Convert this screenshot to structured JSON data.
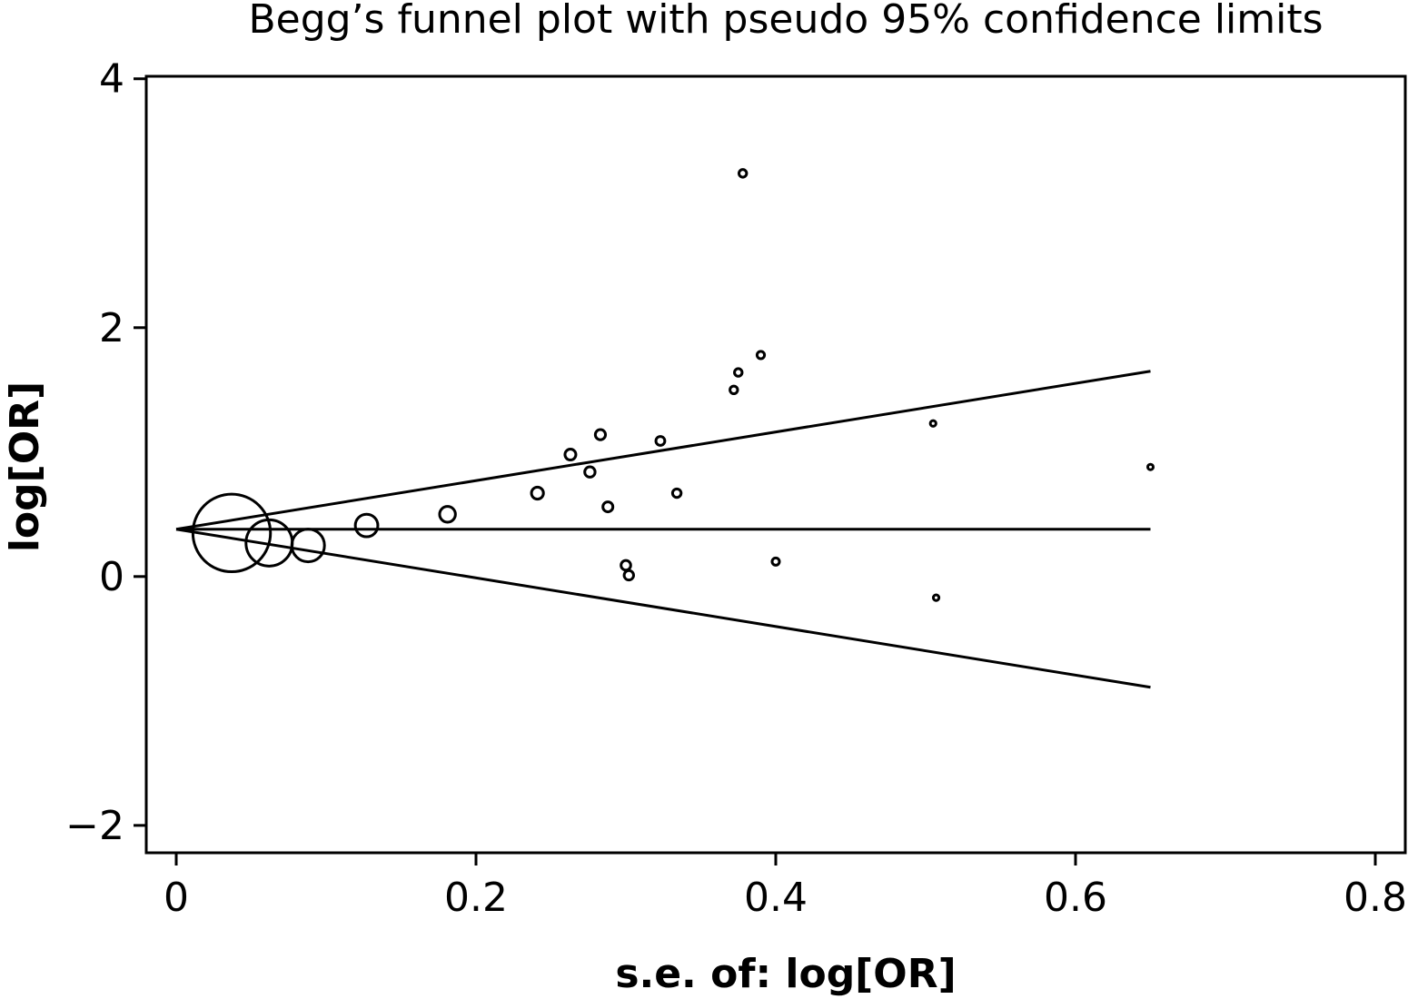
{
  "chart_data": {
    "type": "scatter",
    "title": "Begg’s funnel plot with pseudo 95% confidence limits",
    "xlabel": "s.e. of: log[OR]",
    "ylabel": "log[OR]",
    "xlim": [
      -0.02,
      0.82
    ],
    "ylim": [
      -2.22,
      4.02
    ],
    "xticks": [
      0,
      0.2,
      0.4,
      0.6,
      0.8
    ],
    "xtick_labels": [
      "0",
      "0.2",
      "0.4",
      "0.6",
      "0.8"
    ],
    "yticks": [
      -2,
      0,
      2,
      4
    ],
    "ytick_labels": [
      "−2",
      "0",
      "2",
      "4"
    ],
    "grid": false,
    "pooled_estimate": 0.38,
    "se_range": [
      0,
      0.65
    ],
    "confidence_limits": {
      "upper": [
        [
          0,
          0.38
        ],
        [
          0.65,
          1.65
        ]
      ],
      "lower": [
        [
          0,
          0.38
        ],
        [
          0.65,
          -0.89
        ]
      ]
    },
    "points": [
      {
        "x": 0.037,
        "y": 0.35,
        "weight": 730.3
      },
      {
        "x": 0.062,
        "y": 0.27,
        "weight": 260.1
      },
      {
        "x": 0.088,
        "y": 0.25,
        "weight": 129.1
      },
      {
        "x": 0.127,
        "y": 0.41,
        "weight": 62.0
      },
      {
        "x": 0.181,
        "y": 0.5,
        "weight": 30.5
      },
      {
        "x": 0.241,
        "y": 0.67,
        "weight": 17.2
      },
      {
        "x": 0.263,
        "y": 0.98,
        "weight": 14.5
      },
      {
        "x": 0.276,
        "y": 0.84,
        "weight": 13.1
      },
      {
        "x": 0.283,
        "y": 1.14,
        "weight": 12.5
      },
      {
        "x": 0.288,
        "y": 0.56,
        "weight": 12.1
      },
      {
        "x": 0.3,
        "y": 0.09,
        "weight": 11.1
      },
      {
        "x": 0.302,
        "y": 0.01,
        "weight": 11.0
      },
      {
        "x": 0.323,
        "y": 1.09,
        "weight": 9.6
      },
      {
        "x": 0.334,
        "y": 0.67,
        "weight": 9.0
      },
      {
        "x": 0.372,
        "y": 1.5,
        "weight": 7.2
      },
      {
        "x": 0.375,
        "y": 1.64,
        "weight": 7.1
      },
      {
        "x": 0.378,
        "y": 3.24,
        "weight": 7.0
      },
      {
        "x": 0.39,
        "y": 1.78,
        "weight": 6.6
      },
      {
        "x": 0.4,
        "y": 0.12,
        "weight": 6.3
      },
      {
        "x": 0.505,
        "y": 1.23,
        "weight": 3.9
      },
      {
        "x": 0.507,
        "y": -0.17,
        "weight": 3.9
      },
      {
        "x": 0.65,
        "y": 0.88,
        "weight": 2.4
      }
    ]
  }
}
